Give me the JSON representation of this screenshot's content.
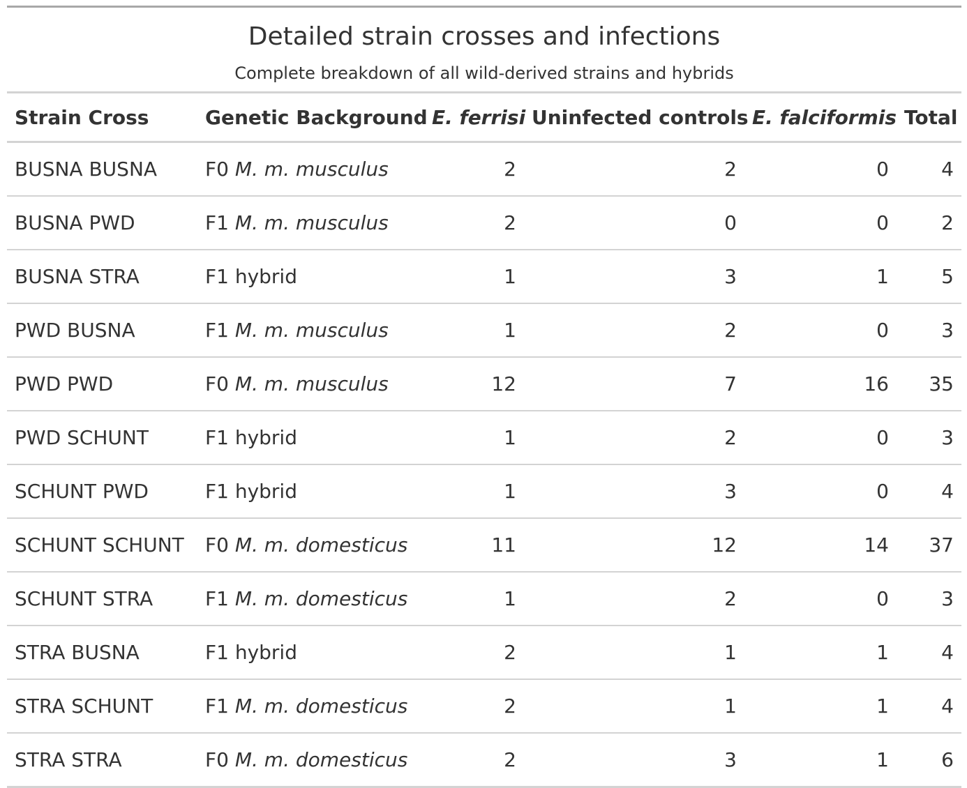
{
  "title": "Detailed strain crosses and infections",
  "subtitle": "Complete breakdown of all wild-derived strains and hybrids",
  "columns": {
    "strain_cross": "Strain Cross",
    "genetic_background": "Genetic Background",
    "e_ferrisi": "E. ferrisi",
    "uninfected": "Uninfected controls",
    "e_falciformis": "E. falciformis",
    "total": "Total"
  },
  "rows": [
    {
      "strain": "BUSNA BUSNA",
      "gen_prefix": "F0",
      "gen_taxon": "M. m. musculus",
      "ferrisi": "2",
      "uninfected": "2",
      "falciformis": "0",
      "total": "4"
    },
    {
      "strain": "BUSNA PWD",
      "gen_prefix": "F1",
      "gen_taxon": "M. m. musculus",
      "ferrisi": "2",
      "uninfected": "0",
      "falciformis": "0",
      "total": "2"
    },
    {
      "strain": "BUSNA STRA",
      "gen_prefix": "F1 hybrid",
      "gen_taxon": "",
      "ferrisi": "1",
      "uninfected": "3",
      "falciformis": "1",
      "total": "5"
    },
    {
      "strain": "PWD BUSNA",
      "gen_prefix": "F1",
      "gen_taxon": "M. m. musculus",
      "ferrisi": "1",
      "uninfected": "2",
      "falciformis": "0",
      "total": "3"
    },
    {
      "strain": "PWD PWD",
      "gen_prefix": "F0",
      "gen_taxon": "M. m. musculus",
      "ferrisi": "12",
      "uninfected": "7",
      "falciformis": "16",
      "total": "35"
    },
    {
      "strain": "PWD SCHUNT",
      "gen_prefix": "F1 hybrid",
      "gen_taxon": "",
      "ferrisi": "1",
      "uninfected": "2",
      "falciformis": "0",
      "total": "3"
    },
    {
      "strain": "SCHUNT PWD",
      "gen_prefix": "F1 hybrid",
      "gen_taxon": "",
      "ferrisi": "1",
      "uninfected": "3",
      "falciformis": "0",
      "total": "4"
    },
    {
      "strain": "SCHUNT SCHUNT",
      "gen_prefix": "F0",
      "gen_taxon": "M. m. domesticus",
      "ferrisi": "11",
      "uninfected": "12",
      "falciformis": "14",
      "total": "37"
    },
    {
      "strain": "SCHUNT STRA",
      "gen_prefix": "F1",
      "gen_taxon": "M. m. domesticus",
      "ferrisi": "1",
      "uninfected": "2",
      "falciformis": "0",
      "total": "3"
    },
    {
      "strain": "STRA BUSNA",
      "gen_prefix": "F1 hybrid",
      "gen_taxon": "",
      "ferrisi": "2",
      "uninfected": "1",
      "falciformis": "1",
      "total": "4"
    },
    {
      "strain": "STRA SCHUNT",
      "gen_prefix": "F1",
      "gen_taxon": "M. m. domesticus",
      "ferrisi": "2",
      "uninfected": "1",
      "falciformis": "1",
      "total": "4"
    },
    {
      "strain": "STRA STRA",
      "gen_prefix": "F0",
      "gen_taxon": "M. m. domesticus",
      "ferrisi": "2",
      "uninfected": "3",
      "falciformis": "1",
      "total": "6"
    }
  ]
}
